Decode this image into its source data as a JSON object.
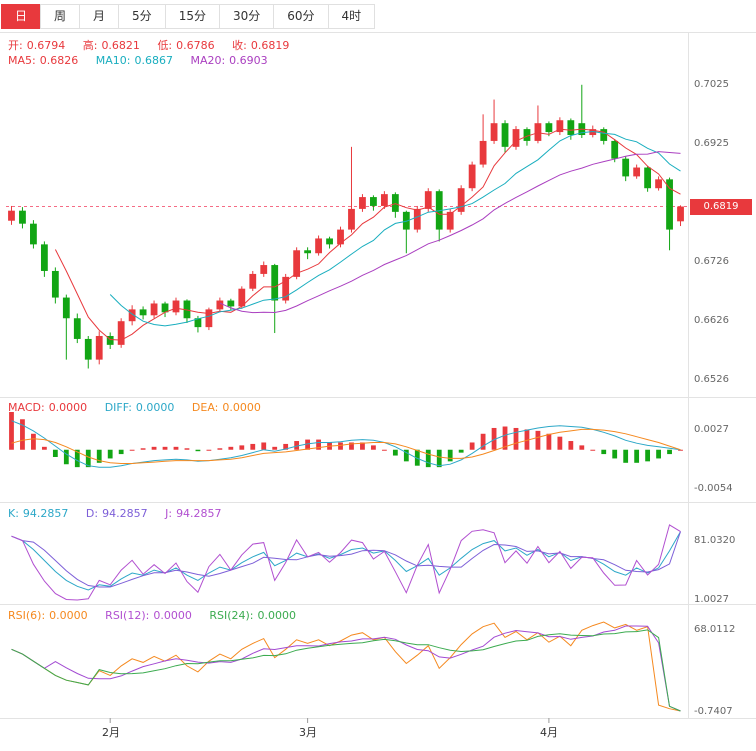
{
  "tabs": {
    "items": [
      {
        "label": "日",
        "active": true
      },
      {
        "label": "周",
        "active": false
      },
      {
        "label": "月",
        "active": false
      },
      {
        "label": "5分",
        "active": false
      },
      {
        "label": "15分",
        "active": false
      },
      {
        "label": "30分",
        "active": false
      },
      {
        "label": "60分",
        "active": false
      },
      {
        "label": "4时",
        "active": false
      }
    ]
  },
  "main_header": {
    "open_label": "开:",
    "open": "0.6794",
    "high_label": "高:",
    "high": "0.6821",
    "low_label": "低:",
    "low": "0.6786",
    "close_label": "收:",
    "close": "0.6819",
    "ma5_label": "MA5:",
    "ma5": "0.6826",
    "ma10_label": "MA10:",
    "ma10": "0.6867",
    "ma20_label": "MA20:",
    "ma20": "0.6903"
  },
  "macd_header": {
    "macd_label": "MACD:",
    "macd": "0.0000",
    "diff_label": "DIFF:",
    "diff": "0.0000",
    "dea_label": "DEA:",
    "dea": "0.0000"
  },
  "kdj_header": {
    "k_label": "K:",
    "k": "94.2857",
    "d_label": "D:",
    "d": "94.2857",
    "j_label": "J:",
    "j": "94.2857"
  },
  "rsi_header": {
    "rsi6_label": "RSI(6):",
    "rsi6": "0.0000",
    "rsi12_label": "RSI(12):",
    "rsi12": "0.0000",
    "rsi24_label": "RSI(24):",
    "rsi24": "0.0000"
  },
  "axis": {
    "price_ticks": [
      "0.7025",
      "0.6925",
      "0.6726",
      "0.6626",
      "0.6526"
    ],
    "current_price": "0.6819",
    "macd_ticks": [
      "0.0027",
      "-0.0054"
    ],
    "kdj_ticks": [
      "81.0320",
      "1.0027"
    ],
    "rsi_ticks": [
      "68.0112",
      "-0.7407"
    ],
    "x_labels": [
      {
        "label": "2月",
        "index": 9
      },
      {
        "label": "3月",
        "index": 27
      },
      {
        "label": "4月",
        "index": 49
      }
    ]
  },
  "colors": {
    "up": "#e8393d",
    "down": "#12a514",
    "ma5": "#e8393d",
    "ma10": "#19aebf",
    "ma20": "#aa3fc0",
    "diff": "#2da8c8",
    "dea": "#f5891f",
    "k": "#2da8c8",
    "d": "#7d5fd8",
    "j": "#b14fd0",
    "rsi6": "#f5891f",
    "rsi12": "#a24ad2",
    "rsi24": "#3cab50",
    "price_line": "#f56c85",
    "badge_bg": "#e8393d",
    "separator": "#e3e3e3"
  },
  "chart_data": [
    {
      "type": "candlestick",
      "name": "daily-candles",
      "ylim": [
        0.6512,
        0.705
      ],
      "ma_periods": [
        5,
        10,
        20
      ],
      "ohlc": [
        [
          0.6795,
          0.682,
          0.6788,
          0.6812
        ],
        [
          0.6812,
          0.6818,
          0.6782,
          0.679
        ],
        [
          0.679,
          0.6796,
          0.6748,
          0.6755
        ],
        [
          0.6755,
          0.676,
          0.67,
          0.671
        ],
        [
          0.671,
          0.6716,
          0.6655,
          0.6665
        ],
        [
          0.6665,
          0.667,
          0.656,
          0.663
        ],
        [
          0.663,
          0.6638,
          0.6588,
          0.6595
        ],
        [
          0.6595,
          0.66,
          0.6545,
          0.656
        ],
        [
          0.656,
          0.6608,
          0.6552,
          0.66
        ],
        [
          0.66,
          0.6606,
          0.6578,
          0.6585
        ],
        [
          0.6585,
          0.663,
          0.658,
          0.6625
        ],
        [
          0.6625,
          0.6652,
          0.6618,
          0.6645
        ],
        [
          0.6645,
          0.665,
          0.6628,
          0.6635
        ],
        [
          0.6635,
          0.666,
          0.663,
          0.6655
        ],
        [
          0.6655,
          0.6658,
          0.6632,
          0.664
        ],
        [
          0.664,
          0.6665,
          0.6635,
          0.666
        ],
        [
          0.666,
          0.6662,
          0.6622,
          0.663
        ],
        [
          0.663,
          0.6634,
          0.6606,
          0.6615
        ],
        [
          0.6615,
          0.6648,
          0.661,
          0.6645
        ],
        [
          0.6645,
          0.6665,
          0.664,
          0.666
        ],
        [
          0.666,
          0.6663,
          0.6644,
          0.665
        ],
        [
          0.665,
          0.6684,
          0.6646,
          0.668
        ],
        [
          0.668,
          0.671,
          0.6676,
          0.6705
        ],
        [
          0.6705,
          0.6726,
          0.67,
          0.672
        ],
        [
          0.672,
          0.6722,
          0.6605,
          0.666
        ],
        [
          0.666,
          0.6705,
          0.6655,
          0.67
        ],
        [
          0.67,
          0.675,
          0.6696,
          0.6745
        ],
        [
          0.6745,
          0.675,
          0.673,
          0.674
        ],
        [
          0.674,
          0.677,
          0.6736,
          0.6765
        ],
        [
          0.6765,
          0.6768,
          0.6748,
          0.6755
        ],
        [
          0.6755,
          0.6785,
          0.675,
          0.678
        ],
        [
          0.678,
          0.692,
          0.6775,
          0.6815
        ],
        [
          0.6815,
          0.684,
          0.681,
          0.6835
        ],
        [
          0.6835,
          0.6838,
          0.6812,
          0.682
        ],
        [
          0.682,
          0.6845,
          0.6815,
          0.684
        ],
        [
          0.684,
          0.6843,
          0.68,
          0.681
        ],
        [
          0.681,
          0.6812,
          0.674,
          0.678
        ],
        [
          0.678,
          0.682,
          0.6775,
          0.6815
        ],
        [
          0.6815,
          0.685,
          0.681,
          0.6845
        ],
        [
          0.6845,
          0.6848,
          0.676,
          0.678
        ],
        [
          0.678,
          0.6815,
          0.6775,
          0.681
        ],
        [
          0.681,
          0.6855,
          0.6805,
          0.685
        ],
        [
          0.685,
          0.6895,
          0.6845,
          0.689
        ],
        [
          0.689,
          0.6975,
          0.6885,
          0.693
        ],
        [
          0.693,
          0.7,
          0.6925,
          0.696
        ],
        [
          0.696,
          0.6965,
          0.691,
          0.692
        ],
        [
          0.692,
          0.6955,
          0.6915,
          0.695
        ],
        [
          0.695,
          0.6953,
          0.6922,
          0.693
        ],
        [
          0.693,
          0.699,
          0.6926,
          0.696
        ],
        [
          0.696,
          0.6963,
          0.6938,
          0.6945
        ],
        [
          0.6945,
          0.697,
          0.694,
          0.6965
        ],
        [
          0.6965,
          0.6968,
          0.6932,
          0.694
        ],
        [
          0.696,
          0.7025,
          0.6935,
          0.694
        ],
        [
          0.694,
          0.6956,
          0.6936,
          0.695
        ],
        [
          0.695,
          0.6953,
          0.6924,
          0.693
        ],
        [
          0.693,
          0.6933,
          0.6894,
          0.69
        ],
        [
          0.69,
          0.6904,
          0.6862,
          0.687
        ],
        [
          0.687,
          0.689,
          0.6866,
          0.6885
        ],
        [
          0.6885,
          0.6888,
          0.6844,
          0.685
        ],
        [
          0.685,
          0.687,
          0.6846,
          0.6865
        ],
        [
          0.6865,
          0.6868,
          0.6745,
          0.678
        ],
        [
          0.6794,
          0.6821,
          0.6786,
          0.6819
        ]
      ]
    },
    {
      "type": "bar",
      "name": "MACD",
      "ylim": [
        -0.0061,
        0.0052
      ],
      "diff": [
        0.004,
        0.0034,
        0.0026,
        0.0016,
        0.0005,
        -0.0006,
        -0.0015,
        -0.0022,
        -0.0024,
        -0.0024,
        -0.0022,
        -0.0019,
        -0.0017,
        -0.0015,
        -0.0014,
        -0.0013,
        -0.0014,
        -0.0016,
        -0.0015,
        -0.0013,
        -0.0011,
        -0.0008,
        -0.0004,
        0.0,
        -0.0002,
        0.0001,
        0.0005,
        0.0008,
        0.001,
        0.001,
        0.0011,
        0.0013,
        0.0014,
        0.0013,
        0.001,
        0.0004,
        -0.0004,
        -0.0012,
        -0.0018,
        -0.0022,
        -0.002,
        -0.0014,
        -0.0005,
        0.0005,
        0.0014,
        0.002,
        0.0024,
        0.0027,
        0.003,
        0.0032,
        0.0033,
        0.0032,
        0.0031,
        0.0028,
        0.0024,
        0.0019,
        0.0013,
        0.0009,
        0.0006,
        0.0004,
        0.0002,
        0.0
      ],
      "dea": [
        0.0009,
        0.0013,
        0.0015,
        0.0014,
        0.001,
        0.0004,
        -0.0003,
        -0.001,
        -0.0015,
        -0.0018,
        -0.0019,
        -0.0019,
        -0.0018,
        -0.0017,
        -0.0016,
        -0.0015,
        -0.0015,
        -0.0015,
        -0.0015,
        -0.0014,
        -0.0013,
        -0.0011,
        -0.0008,
        -0.0005,
        -0.0004,
        -0.0003,
        -0.0001,
        0.0001,
        0.0003,
        0.0005,
        0.0006,
        0.0008,
        0.0009,
        0.001,
        0.001,
        0.0008,
        0.0004,
        -0.0001,
        -0.0006,
        -0.001,
        -0.0012,
        -0.0012,
        -0.001,
        -0.0006,
        -0.0001,
        0.0004,
        0.0009,
        0.0013,
        0.0017,
        0.0021,
        0.0024,
        0.0026,
        0.0028,
        0.0028,
        0.0027,
        0.0025,
        0.0022,
        0.0018,
        0.0014,
        0.001,
        0.0005,
        0.0
      ]
    },
    {
      "type": "line",
      "name": "KDJ",
      "ylim": [
        0,
        110
      ],
      "k": [
        88,
        82,
        70,
        55,
        40,
        28,
        20,
        15,
        22,
        20,
        30,
        38,
        35,
        42,
        38,
        45,
        35,
        28,
        38,
        46,
        42,
        52,
        60,
        66,
        48,
        55,
        65,
        60,
        64,
        58,
        63,
        70,
        72,
        65,
        68,
        55,
        40,
        48,
        58,
        35,
        45,
        58,
        70,
        78,
        82,
        68,
        72,
        62,
        70,
        60,
        66,
        55,
        60,
        58,
        50,
        40,
        35,
        45,
        38,
        45,
        68,
        94.2857
      ]
    },
    {
      "type": "line",
      "name": "RSI",
      "ylim": [
        -2.5,
        75
      ],
      "rsi6": [
        52,
        48,
        42,
        36,
        30,
        26,
        24,
        22,
        34,
        30,
        38,
        44,
        41,
        46,
        42,
        47,
        38,
        33,
        42,
        48,
        44,
        52,
        57,
        61,
        45,
        52,
        60,
        57,
        60,
        55,
        59,
        64,
        66,
        60,
        62,
        50,
        40,
        47,
        55,
        36,
        45,
        56,
        65,
        71,
        74,
        62,
        67,
        60,
        66,
        58,
        63,
        55,
        68,
        72,
        75,
        70,
        73,
        68,
        71,
        5,
        2,
        0
      ]
    }
  ]
}
